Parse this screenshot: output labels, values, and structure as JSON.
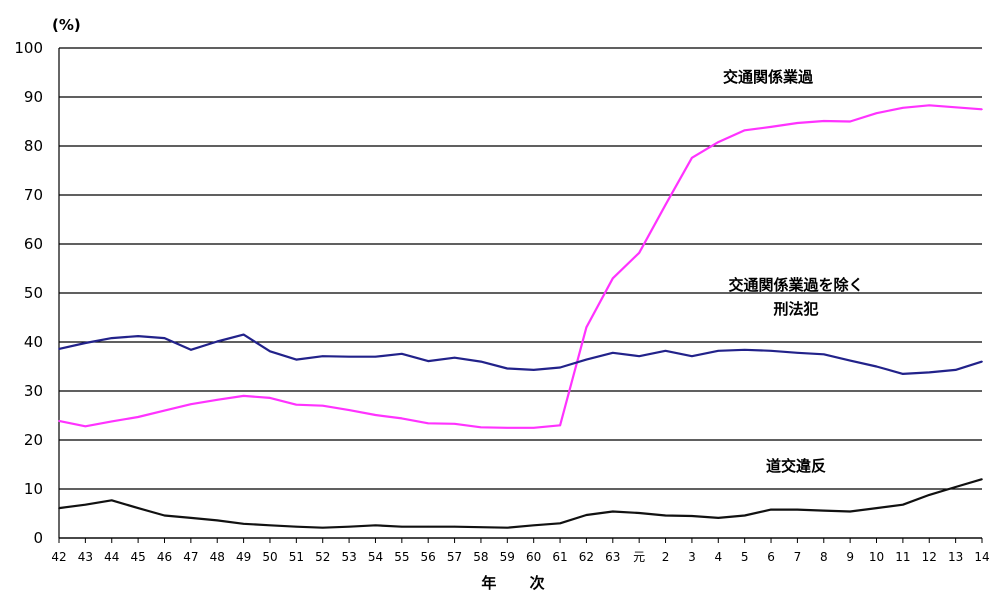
{
  "chart_data": {
    "type": "line",
    "unit_label": "(%)",
    "xlabel": "年 次",
    "ylim": [
      0,
      100
    ],
    "yticks": [
      0,
      10,
      20,
      30,
      40,
      50,
      60,
      70,
      80,
      90,
      100
    ],
    "grid": true,
    "categories": [
      "42",
      "43",
      "44",
      "45",
      "46",
      "47",
      "48",
      "49",
      "50",
      "51",
      "52",
      "53",
      "54",
      "55",
      "56",
      "57",
      "58",
      "59",
      "60",
      "61",
      "62",
      "63",
      "元",
      "2",
      "3",
      "4",
      "5",
      "6",
      "7",
      "8",
      "9",
      "10",
      "11",
      "12",
      "13",
      "14"
    ],
    "series": [
      {
        "name": "交通関係業過",
        "color": "#ff33ff",
        "values": [
          23.9,
          22.8,
          23.8,
          24.7,
          26.0,
          27.3,
          28.2,
          29.0,
          28.6,
          27.2,
          27.0,
          26.1,
          25.1,
          24.4,
          23.4,
          23.3,
          22.6,
          22.5,
          22.5,
          23.0,
          43.0,
          53.0,
          58.2,
          68.0,
          77.6,
          80.8,
          83.2,
          83.9,
          84.7,
          85.1,
          85.0,
          86.7,
          87.8,
          88.3,
          87.9,
          87.5
        ]
      },
      {
        "name": "交通関係業過を除く刑法犯",
        "color": "#22228a",
        "values": [
          38.6,
          39.8,
          40.8,
          41.2,
          40.8,
          38.4,
          40.1,
          41.5,
          38.1,
          36.4,
          37.1,
          37.0,
          37.0,
          37.6,
          36.1,
          36.8,
          36.0,
          34.6,
          34.3,
          34.8,
          36.4,
          37.8,
          37.1,
          38.2,
          37.1,
          38.2,
          38.4,
          38.2,
          37.8,
          37.5,
          36.2,
          35.0,
          33.5,
          33.8,
          34.3,
          36.0
        ]
      },
      {
        "name": "道交違反",
        "color": "#111111",
        "values": [
          6.1,
          6.8,
          7.7,
          6.1,
          4.6,
          4.1,
          3.6,
          2.9,
          2.6,
          2.3,
          2.1,
          2.3,
          2.6,
          2.3,
          2.3,
          2.3,
          2.2,
          2.1,
          2.6,
          3.0,
          4.7,
          5.4,
          5.1,
          4.6,
          4.5,
          4.1,
          4.6,
          5.8,
          5.8,
          5.6,
          5.4,
          6.1,
          6.8,
          8.8,
          10.4,
          12.0
        ]
      }
    ],
    "annotations": [
      {
        "lines": [
          "交通関係業過"
        ]
      },
      {
        "lines": [
          "交通関係業過を除く",
          "刑法犯"
        ]
      },
      {
        "lines": [
          "道交違反"
        ]
      }
    ]
  }
}
